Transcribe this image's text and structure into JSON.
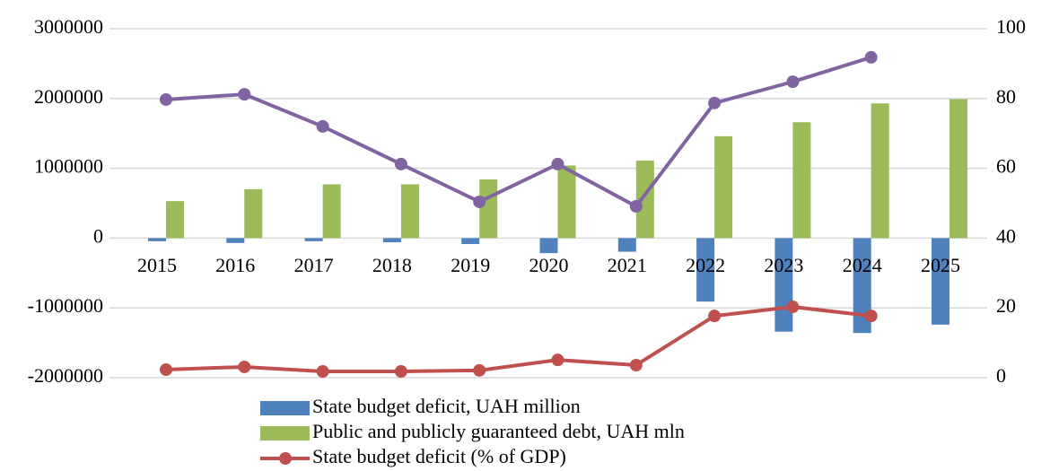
{
  "chart_data": {
    "type": "bar-line",
    "categories": [
      "2015",
      "2016",
      "2017",
      "2018",
      "2019",
      "2020",
      "2021",
      "2022",
      "2023",
      "2024",
      "2025"
    ],
    "series": [
      {
        "name": "State budget deficit, UAH million",
        "type": "bar",
        "color": "#4f81bd",
        "values": [
          -45000,
          -70000,
          -45000,
          -60000,
          -85000,
          -215000,
          -195000,
          -910000,
          -1340000,
          -1360000,
          -1240000
        ]
      },
      {
        "name": "Public and publicly guaranteed debt, UAH mln",
        "type": "bar",
        "color": "#9bbb59",
        "values": [
          530000,
          700000,
          770000,
          770000,
          840000,
          1040000,
          1110000,
          1460000,
          1660000,
          1930000,
          1990000
        ]
      },
      {
        "name": "State budget deficit (% of GDP)",
        "type": "line",
        "axis": "y2",
        "color": "#c0504d",
        "values": [
          2.3,
          3.1,
          1.8,
          1.8,
          2.1,
          5.1,
          3.6,
          17.7,
          20.3,
          17.7,
          null
        ]
      },
      {
        "type": "line",
        "axis": "y2",
        "color": "#8064a2",
        "values": [
          79.7,
          81.2,
          72,
          61.2,
          50.4,
          61.2,
          49.1,
          78.7,
          84.8,
          91.8,
          null
        ]
      }
    ],
    "ylim": [
      -2000000,
      3000000
    ],
    "yticks": [
      -2000000,
      -1000000,
      0,
      1000000,
      2000000,
      3000000
    ],
    "y2lim": [
      0,
      100
    ],
    "y2ticks": [
      0,
      20,
      40,
      60,
      80,
      100
    ],
    "grid": true
  }
}
